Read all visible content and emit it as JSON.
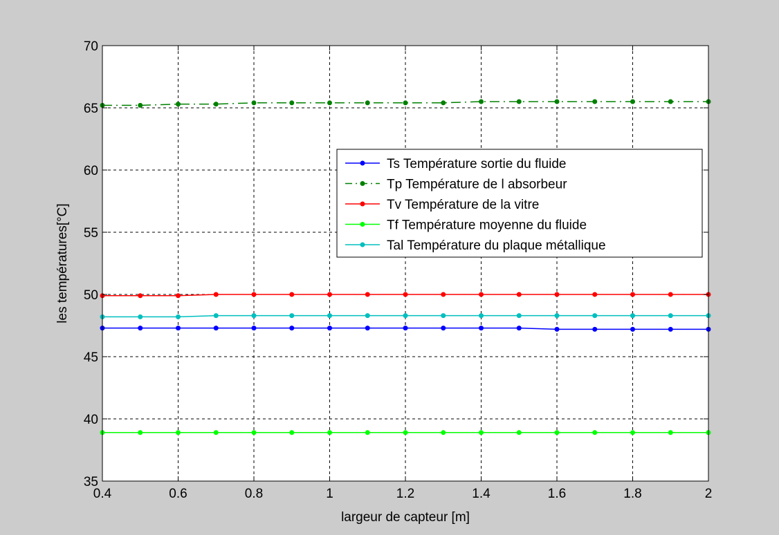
{
  "chart_data": {
    "type": "line",
    "title": "",
    "xlabel": "largeur de capteur [m]",
    "ylabel": "les températures[°C]",
    "xlim": [
      0.4,
      2
    ],
    "ylim": [
      35,
      70
    ],
    "x_ticks": [
      0.4,
      0.6,
      0.8,
      1,
      1.2,
      1.4,
      1.6,
      1.8,
      2
    ],
    "x_tick_labels": [
      "0.4",
      "0.6",
      "0.8",
      "1",
      "1.2",
      "1.4",
      "1.6",
      "1.8",
      "2"
    ],
    "y_ticks": [
      35,
      40,
      45,
      50,
      55,
      60,
      65,
      70
    ],
    "y_tick_labels": [
      "35",
      "40",
      "45",
      "50",
      "55",
      "60",
      "65",
      "70"
    ],
    "grid": true,
    "legend_position": "center-right",
    "x": [
      0.4,
      0.5,
      0.6,
      0.7,
      0.8,
      0.9,
      1.0,
      1.1,
      1.2,
      1.3,
      1.4,
      1.5,
      1.6,
      1.7,
      1.8,
      1.9,
      2.0
    ],
    "series": [
      {
        "name": "Ts Température sortie du fluide",
        "color": "#0000ff",
        "line_style": "solid",
        "values": [
          47.3,
          47.3,
          47.3,
          47.3,
          47.3,
          47.3,
          47.3,
          47.3,
          47.3,
          47.3,
          47.3,
          47.3,
          47.2,
          47.2,
          47.2,
          47.2,
          47.2
        ]
      },
      {
        "name": "Tp Température de l absorbeur",
        "color": "#008000",
        "line_style": "dash-dot",
        "values": [
          65.2,
          65.2,
          65.3,
          65.3,
          65.4,
          65.4,
          65.4,
          65.4,
          65.4,
          65.4,
          65.5,
          65.5,
          65.5,
          65.5,
          65.5,
          65.5,
          65.5
        ]
      },
      {
        "name": "Tv Température de la vitre",
        "color": "#ff0000",
        "line_style": "solid",
        "values": [
          49.9,
          49.9,
          49.9,
          50.0,
          50.0,
          50.0,
          50.0,
          50.0,
          50.0,
          50.0,
          50.0,
          50.0,
          50.0,
          50.0,
          50.0,
          50.0,
          50.0
        ]
      },
      {
        "name": "Tf Température moyenne du fluide",
        "color": "#00ff00",
        "line_style": "solid",
        "values": [
          38.9,
          38.9,
          38.9,
          38.9,
          38.9,
          38.9,
          38.9,
          38.9,
          38.9,
          38.9,
          38.9,
          38.9,
          38.9,
          38.9,
          38.9,
          38.9,
          38.9
        ]
      },
      {
        "name": "Tal Température du plaque métallique",
        "color": "#00bfbf",
        "line_style": "solid",
        "values": [
          48.2,
          48.2,
          48.2,
          48.3,
          48.3,
          48.3,
          48.3,
          48.3,
          48.3,
          48.3,
          48.3,
          48.3,
          48.3,
          48.3,
          48.3,
          48.3,
          48.3
        ]
      }
    ]
  }
}
